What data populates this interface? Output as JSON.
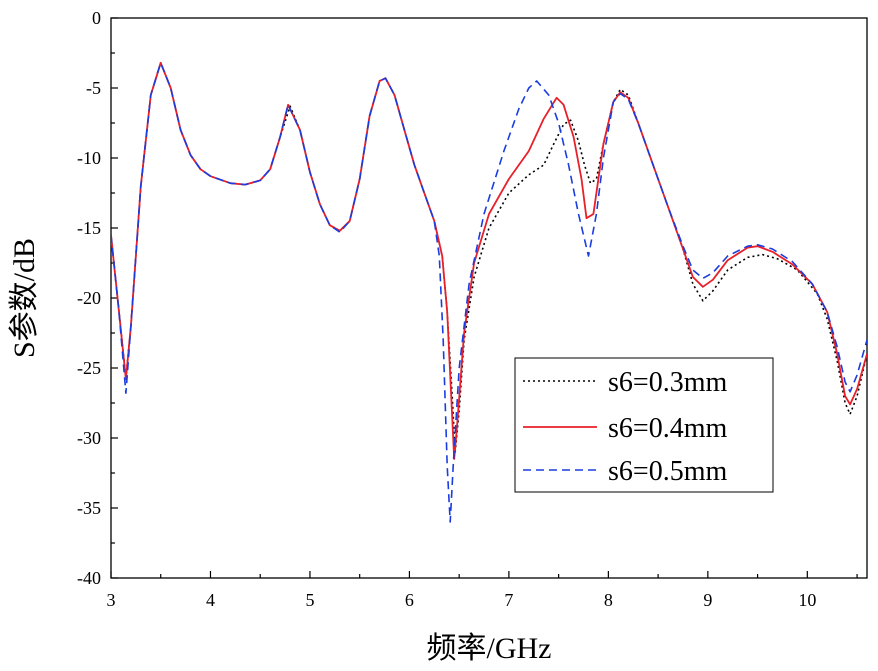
{
  "chart_data": {
    "type": "line",
    "xlabel": "频率/GHz",
    "ylabel": "S参数/dB",
    "xlim": [
      3,
      10.6
    ],
    "ylim": [
      -40,
      0
    ],
    "x_ticks": [
      "3",
      "4",
      "5",
      "6",
      "7",
      "8",
      "9",
      "10"
    ],
    "y_ticks": [
      "0",
      "-5",
      "-10",
      "-15",
      "-20",
      "-25",
      "-30",
      "-35",
      "-40"
    ],
    "grid": false,
    "legend_position": "lower-right",
    "series": [
      {
        "name": "s6=0.3mm",
        "color": "#000000",
        "style": "dotted",
        "points": [
          [
            3.0,
            -15.5
          ],
          [
            3.08,
            -21
          ],
          [
            3.15,
            -25.7
          ],
          [
            3.2,
            -22
          ],
          [
            3.3,
            -12
          ],
          [
            3.4,
            -5.5
          ],
          [
            3.5,
            -3.2
          ],
          [
            3.6,
            -5
          ],
          [
            3.7,
            -8
          ],
          [
            3.8,
            -9.8
          ],
          [
            3.9,
            -10.8
          ],
          [
            4.0,
            -11.3
          ],
          [
            4.2,
            -11.8
          ],
          [
            4.35,
            -11.9
          ],
          [
            4.5,
            -11.6
          ],
          [
            4.6,
            -10.8
          ],
          [
            4.7,
            -8.5
          ],
          [
            4.8,
            -6.3
          ],
          [
            4.9,
            -8
          ],
          [
            5.0,
            -11
          ],
          [
            5.1,
            -13.3
          ],
          [
            5.2,
            -14.8
          ],
          [
            5.3,
            -15.2
          ],
          [
            5.4,
            -14.5
          ],
          [
            5.5,
            -11.5
          ],
          [
            5.6,
            -7
          ],
          [
            5.7,
            -4.5
          ],
          [
            5.76,
            -4.3
          ],
          [
            5.85,
            -5.5
          ],
          [
            5.95,
            -8
          ],
          [
            6.05,
            -10.5
          ],
          [
            6.15,
            -12.5
          ],
          [
            6.25,
            -14.5
          ],
          [
            6.33,
            -17
          ],
          [
            6.38,
            -21
          ],
          [
            6.43,
            -27
          ],
          [
            6.46,
            -31
          ],
          [
            6.5,
            -28
          ],
          [
            6.55,
            -23
          ],
          [
            6.65,
            -18.5
          ],
          [
            6.8,
            -15
          ],
          [
            7.0,
            -12.5
          ],
          [
            7.2,
            -11.2
          ],
          [
            7.35,
            -10.5
          ],
          [
            7.45,
            -9
          ],
          [
            7.55,
            -7.6
          ],
          [
            7.62,
            -7.3
          ],
          [
            7.7,
            -8.8
          ],
          [
            7.76,
            -10.5
          ],
          [
            7.82,
            -11.8
          ],
          [
            7.88,
            -11.5
          ],
          [
            7.95,
            -9
          ],
          [
            8.05,
            -6
          ],
          [
            8.12,
            -5.1
          ],
          [
            8.2,
            -5.5
          ],
          [
            8.3,
            -7.5
          ],
          [
            8.45,
            -10.5
          ],
          [
            8.6,
            -13.5
          ],
          [
            8.75,
            -16.5
          ],
          [
            8.85,
            -19
          ],
          [
            8.95,
            -20.2
          ],
          [
            9.05,
            -19.5
          ],
          [
            9.2,
            -18
          ],
          [
            9.4,
            -17.1
          ],
          [
            9.55,
            -16.9
          ],
          [
            9.7,
            -17.2
          ],
          [
            9.9,
            -18
          ],
          [
            10.1,
            -19.7
          ],
          [
            10.2,
            -21.5
          ],
          [
            10.3,
            -24.5
          ],
          [
            10.38,
            -27.5
          ],
          [
            10.43,
            -28.3
          ],
          [
            10.5,
            -27
          ],
          [
            10.6,
            -24
          ]
        ]
      },
      {
        "name": "s6=0.4mm",
        "color": "#e8202a",
        "style": "solid",
        "points": [
          [
            3.0,
            -15.5
          ],
          [
            3.08,
            -21
          ],
          [
            3.15,
            -25.8
          ],
          [
            3.2,
            -22
          ],
          [
            3.3,
            -12
          ],
          [
            3.4,
            -5.5
          ],
          [
            3.5,
            -3.2
          ],
          [
            3.6,
            -5
          ],
          [
            3.7,
            -8
          ],
          [
            3.8,
            -9.8
          ],
          [
            3.9,
            -10.8
          ],
          [
            4.0,
            -11.3
          ],
          [
            4.2,
            -11.8
          ],
          [
            4.35,
            -11.9
          ],
          [
            4.5,
            -11.6
          ],
          [
            4.6,
            -10.8
          ],
          [
            4.7,
            -8.5
          ],
          [
            4.78,
            -6.2
          ],
          [
            4.9,
            -8
          ],
          [
            5.0,
            -11
          ],
          [
            5.1,
            -13.3
          ],
          [
            5.2,
            -14.8
          ],
          [
            5.3,
            -15.2
          ],
          [
            5.4,
            -14.5
          ],
          [
            5.5,
            -11.5
          ],
          [
            5.6,
            -7
          ],
          [
            5.7,
            -4.5
          ],
          [
            5.76,
            -4.3
          ],
          [
            5.85,
            -5.5
          ],
          [
            5.95,
            -8
          ],
          [
            6.05,
            -10.5
          ],
          [
            6.15,
            -12.5
          ],
          [
            6.25,
            -14.5
          ],
          [
            6.33,
            -17
          ],
          [
            6.38,
            -21
          ],
          [
            6.42,
            -27
          ],
          [
            6.45,
            -31.5
          ],
          [
            6.48,
            -29
          ],
          [
            6.55,
            -22.5
          ],
          [
            6.65,
            -17.5
          ],
          [
            6.8,
            -14
          ],
          [
            7.0,
            -11.5
          ],
          [
            7.2,
            -9.5
          ],
          [
            7.35,
            -7.2
          ],
          [
            7.48,
            -5.7
          ],
          [
            7.55,
            -6.2
          ],
          [
            7.65,
            -8.5
          ],
          [
            7.73,
            -11.5
          ],
          [
            7.78,
            -14.3
          ],
          [
            7.85,
            -14
          ],
          [
            7.95,
            -9
          ],
          [
            8.05,
            -6
          ],
          [
            8.12,
            -5.3
          ],
          [
            8.2,
            -5.7
          ],
          [
            8.3,
            -7.5
          ],
          [
            8.45,
            -10.5
          ],
          [
            8.6,
            -13.5
          ],
          [
            8.75,
            -16.5
          ],
          [
            8.85,
            -18.5
          ],
          [
            8.95,
            -19.2
          ],
          [
            9.05,
            -18.7
          ],
          [
            9.2,
            -17.3
          ],
          [
            9.4,
            -16.4
          ],
          [
            9.5,
            -16.3
          ],
          [
            9.65,
            -16.7
          ],
          [
            9.85,
            -17.6
          ],
          [
            10.05,
            -19
          ],
          [
            10.2,
            -21
          ],
          [
            10.3,
            -24
          ],
          [
            10.38,
            -27
          ],
          [
            10.43,
            -27.6
          ],
          [
            10.5,
            -26.5
          ],
          [
            10.6,
            -24
          ]
        ]
      },
      {
        "name": "s6=0.5mm",
        "color": "#1a3de0",
        "style": "dashed",
        "points": [
          [
            3.0,
            -15.5
          ],
          [
            3.08,
            -21
          ],
          [
            3.15,
            -26.8
          ],
          [
            3.2,
            -22
          ],
          [
            3.3,
            -12
          ],
          [
            3.4,
            -5.5
          ],
          [
            3.5,
            -3.2
          ],
          [
            3.6,
            -5
          ],
          [
            3.7,
            -8
          ],
          [
            3.8,
            -9.8
          ],
          [
            3.9,
            -10.8
          ],
          [
            4.0,
            -11.3
          ],
          [
            4.2,
            -11.8
          ],
          [
            4.35,
            -11.9
          ],
          [
            4.5,
            -11.6
          ],
          [
            4.6,
            -10.8
          ],
          [
            4.7,
            -8.5
          ],
          [
            4.78,
            -6.2
          ],
          [
            4.9,
            -8
          ],
          [
            5.0,
            -11
          ],
          [
            5.1,
            -13.3
          ],
          [
            5.2,
            -14.8
          ],
          [
            5.3,
            -15.3
          ],
          [
            5.4,
            -14.5
          ],
          [
            5.5,
            -11.5
          ],
          [
            5.6,
            -7
          ],
          [
            5.7,
            -4.5
          ],
          [
            5.76,
            -4.3
          ],
          [
            5.85,
            -5.5
          ],
          [
            5.95,
            -8
          ],
          [
            6.05,
            -10.5
          ],
          [
            6.15,
            -12.5
          ],
          [
            6.25,
            -14.5
          ],
          [
            6.3,
            -17
          ],
          [
            6.34,
            -23
          ],
          [
            6.38,
            -32
          ],
          [
            6.41,
            -36
          ],
          [
            6.44,
            -32
          ],
          [
            6.5,
            -25
          ],
          [
            6.6,
            -19
          ],
          [
            6.75,
            -14
          ],
          [
            6.95,
            -9.5
          ],
          [
            7.1,
            -6.5
          ],
          [
            7.2,
            -5
          ],
          [
            7.28,
            -4.5
          ],
          [
            7.4,
            -5.5
          ],
          [
            7.5,
            -7.5
          ],
          [
            7.6,
            -10.5
          ],
          [
            7.7,
            -14
          ],
          [
            7.8,
            -17
          ],
          [
            7.88,
            -14
          ],
          [
            7.95,
            -10
          ],
          [
            8.05,
            -6
          ],
          [
            8.12,
            -5.4
          ],
          [
            8.2,
            -5.8
          ],
          [
            8.3,
            -7.5
          ],
          [
            8.45,
            -10.5
          ],
          [
            8.6,
            -13.5
          ],
          [
            8.75,
            -16.3
          ],
          [
            8.85,
            -18
          ],
          [
            8.95,
            -18.6
          ],
          [
            9.05,
            -18.2
          ],
          [
            9.2,
            -17
          ],
          [
            9.4,
            -16.3
          ],
          [
            9.5,
            -16.2
          ],
          [
            9.65,
            -16.5
          ],
          [
            9.85,
            -17.4
          ],
          [
            10.05,
            -19
          ],
          [
            10.2,
            -21
          ],
          [
            10.3,
            -23.5
          ],
          [
            10.38,
            -26
          ],
          [
            10.43,
            -26.7
          ],
          [
            10.5,
            -25.5
          ],
          [
            10.6,
            -23
          ]
        ]
      }
    ]
  }
}
